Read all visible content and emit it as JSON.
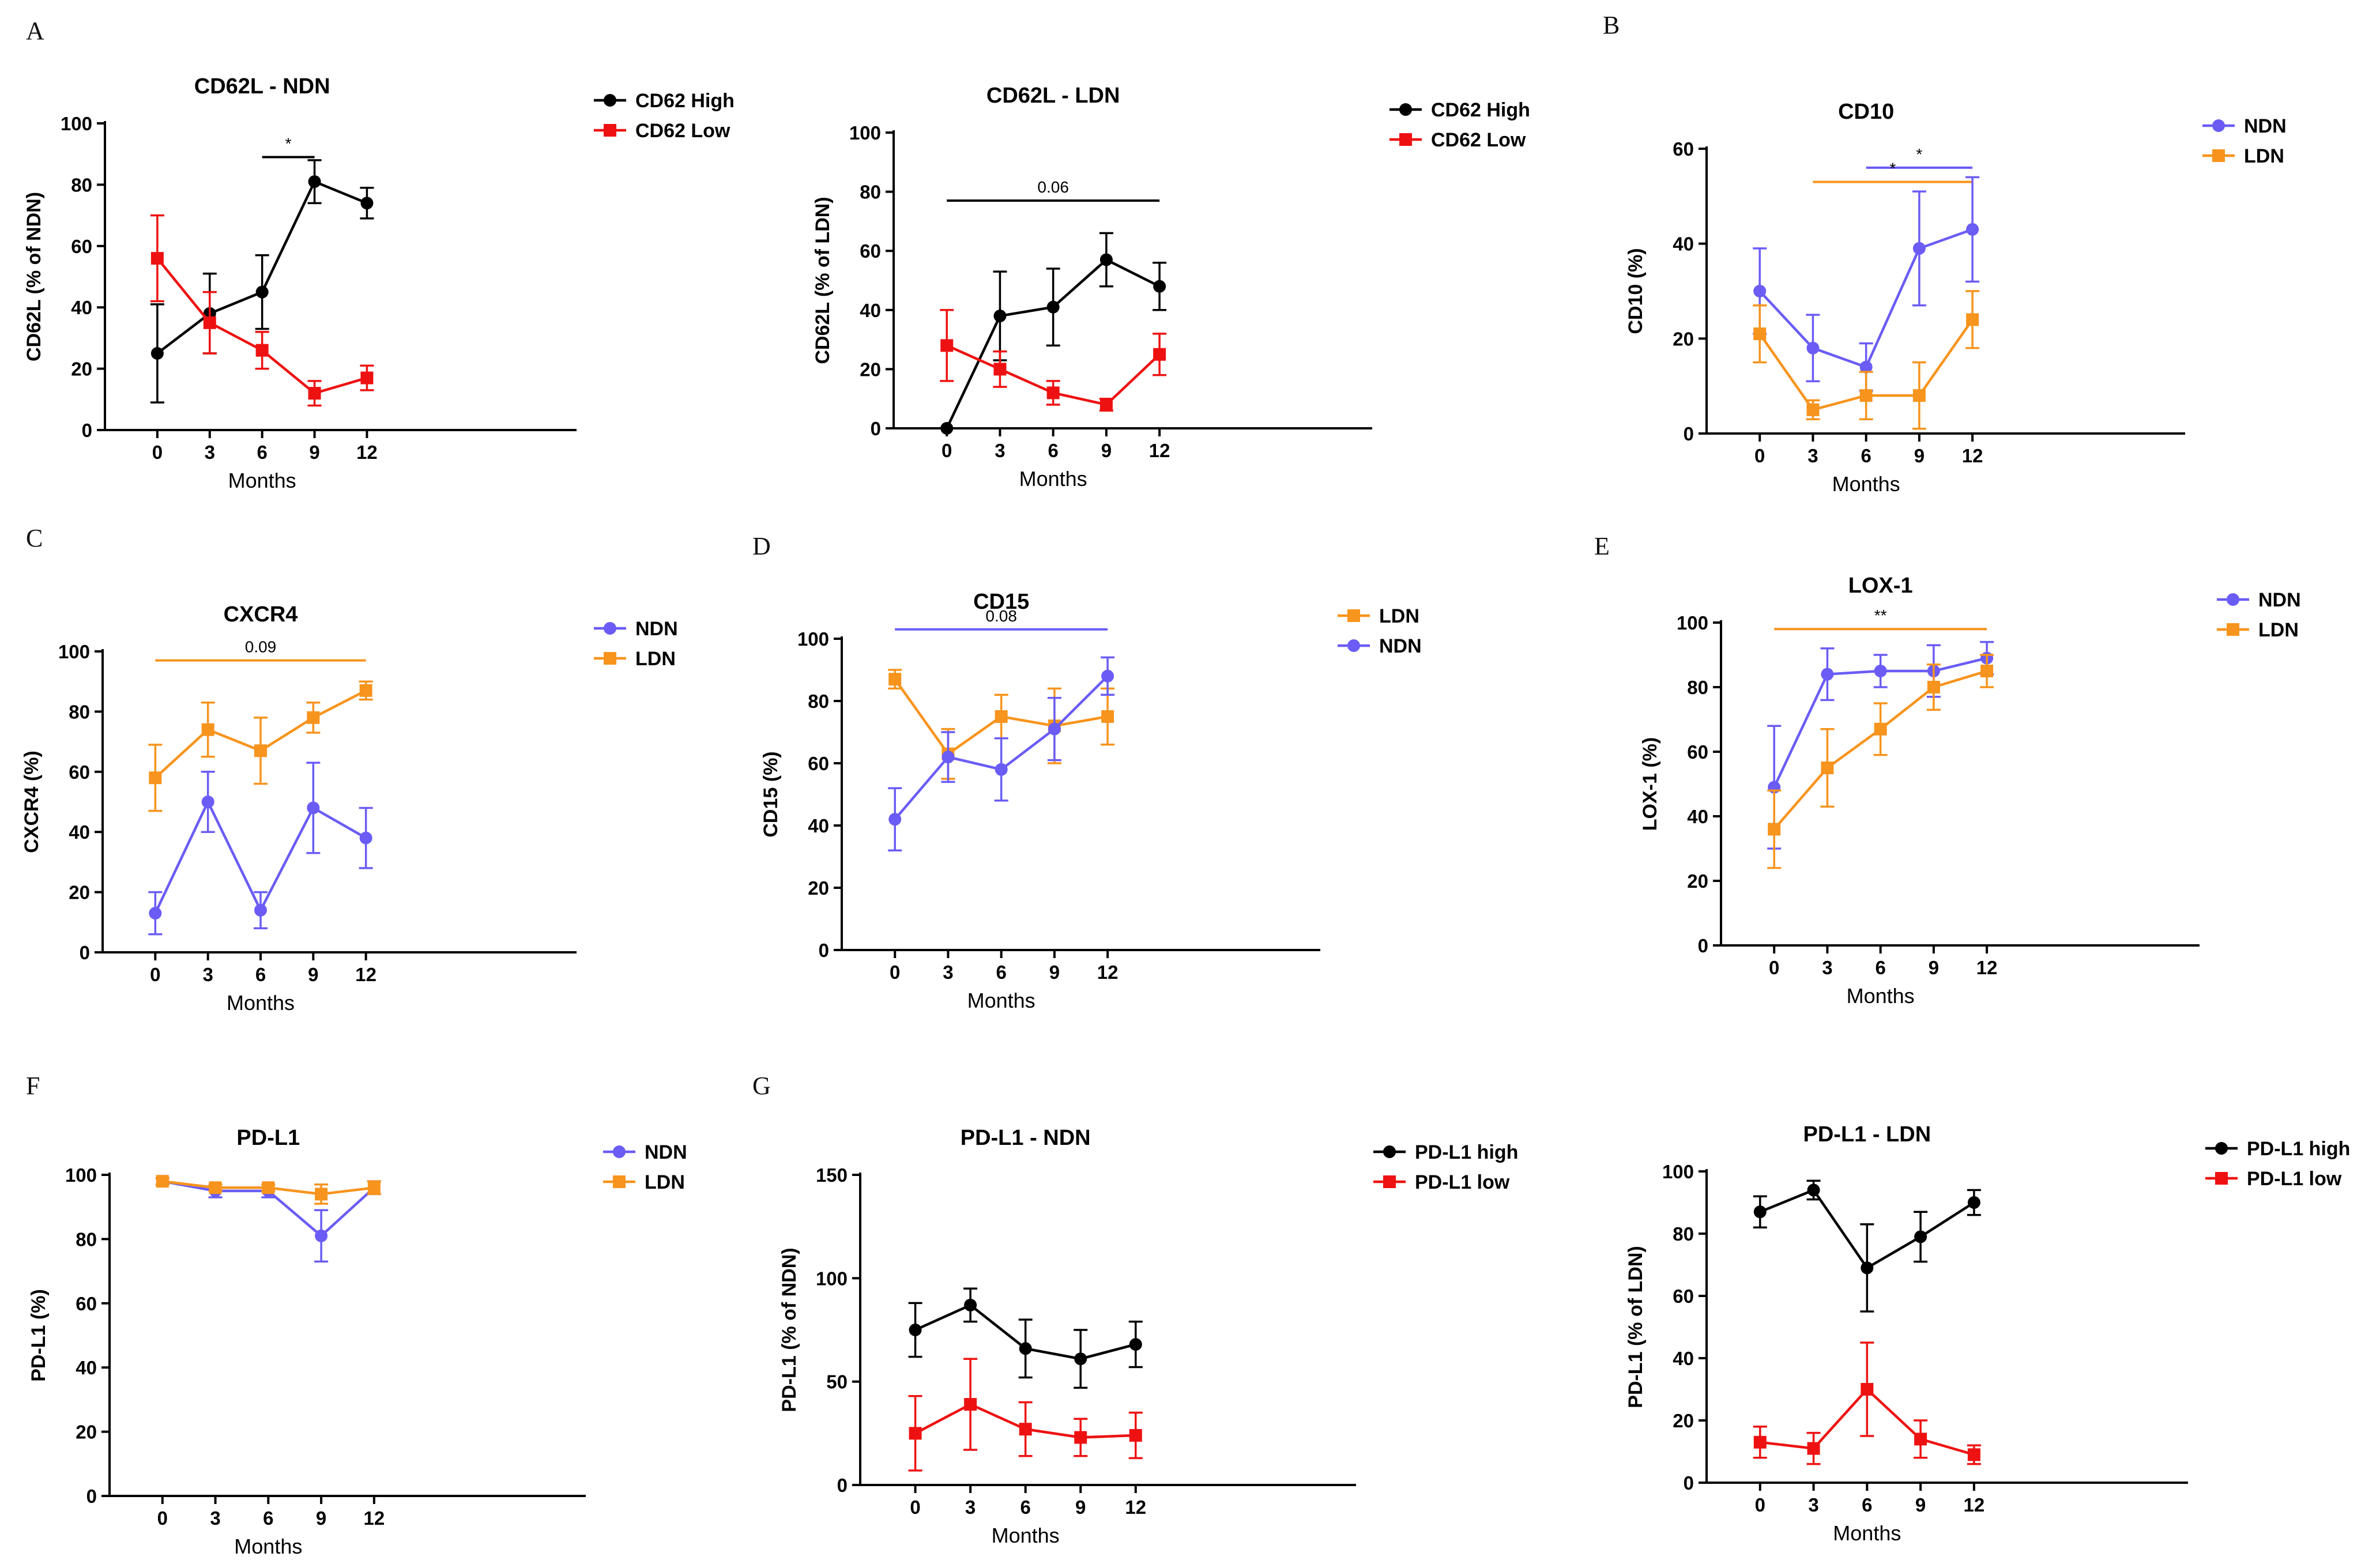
{
  "colors": {
    "black": "#000000",
    "red": "#ee1111",
    "blue": "#6a5cf5",
    "orange": "#f7941d"
  },
  "panel_letters": [
    "A",
    "B",
    "C",
    "D",
    "E",
    "F",
    "G"
  ],
  "chart_data": [
    {
      "id": "cd62l_ndn",
      "type": "line",
      "title": "CD62L - NDN",
      "xlabel": "Months",
      "ylabel": "CD62L (% of NDN)",
      "x": [
        0,
        3,
        6,
        9,
        12
      ],
      "xticks": [
        0,
        3,
        6,
        9,
        12
      ],
      "xlim": [
        -3,
        24
      ],
      "ylim": [
        0,
        100
      ],
      "yticks": [
        0,
        20,
        40,
        60,
        80,
        100
      ],
      "series": [
        {
          "name": "CD62 High",
          "color": "#000000",
          "marker": "circle",
          "values": [
            25,
            38,
            45,
            81,
            74
          ],
          "err": [
            16,
            13,
            12,
            7,
            5
          ]
        },
        {
          "name": "CD62 Low",
          "color": "#ee1111",
          "marker": "square",
          "values": [
            56,
            35,
            26,
            12,
            17
          ],
          "err": [
            14,
            10,
            6,
            4,
            4
          ]
        }
      ],
      "annotations": [
        {
          "x1": 6,
          "x2": 9,
          "y": 89,
          "label": "*",
          "color": "#000000"
        }
      ]
    },
    {
      "id": "cd62l_ldn",
      "type": "line",
      "title": "CD62L - LDN",
      "xlabel": "Months",
      "ylabel": "CD62L (% of LDN)",
      "x": [
        0,
        3,
        6,
        9,
        12
      ],
      "xticks": [
        0,
        3,
        6,
        9,
        12
      ],
      "xlim": [
        -3,
        24
      ],
      "ylim": [
        0,
        100
      ],
      "yticks": [
        0,
        20,
        40,
        60,
        80,
        100
      ],
      "series": [
        {
          "name": "CD62 High",
          "color": "#000000",
          "marker": "circle",
          "values": [
            0,
            38,
            41,
            57,
            48
          ],
          "err": [
            0,
            15,
            13,
            9,
            8
          ]
        },
        {
          "name": "CD62 Low",
          "color": "#ee1111",
          "marker": "square",
          "values": [
            28,
            20,
            12,
            8,
            25
          ],
          "err": [
            12,
            6,
            4,
            2,
            7
          ]
        }
      ],
      "annotations": [
        {
          "x1": 0,
          "x2": 12,
          "y": 77,
          "label": "0.06",
          "color": "#000000"
        }
      ]
    },
    {
      "id": "cd10",
      "type": "line",
      "title": "CD10",
      "xlabel": "Months",
      "ylabel": "CD10 (%)",
      "x": [
        0,
        3,
        6,
        9,
        12
      ],
      "xticks": [
        0,
        3,
        6,
        9,
        12
      ],
      "xlim": [
        -3,
        24
      ],
      "ylim": [
        0,
        60
      ],
      "yticks": [
        0,
        20,
        40,
        60
      ],
      "series": [
        {
          "name": "NDN",
          "color": "#6a5cf5",
          "marker": "circle",
          "values": [
            30,
            18,
            14,
            39,
            43
          ],
          "err": [
            9,
            7,
            5,
            12,
            11
          ]
        },
        {
          "name": "LDN",
          "color": "#f7941d",
          "marker": "square",
          "values": [
            21,
            5,
            8,
            8,
            24
          ],
          "err": [
            6,
            2,
            5,
            7,
            6
          ]
        }
      ],
      "annotations": [
        {
          "x1": 6,
          "x2": 12,
          "y": 56,
          "label": "*",
          "color": "#6a5cf5"
        },
        {
          "x1": 3,
          "x2": 12,
          "y": 53,
          "label": "*",
          "color": "#f7941d"
        }
      ]
    },
    {
      "id": "cxcr4",
      "type": "line",
      "title": "CXCR4",
      "xlabel": "Months",
      "ylabel": "CXCR4 (%)",
      "x": [
        0,
        3,
        6,
        9,
        12
      ],
      "xticks": [
        0,
        3,
        6,
        9,
        12
      ],
      "xlim": [
        -3,
        24
      ],
      "ylim": [
        0,
        100
      ],
      "yticks": [
        0,
        20,
        40,
        60,
        80,
        100
      ],
      "series": [
        {
          "name": "NDN",
          "color": "#6a5cf5",
          "marker": "circle",
          "values": [
            13,
            50,
            14,
            48,
            38
          ],
          "err": [
            7,
            10,
            6,
            15,
            10
          ]
        },
        {
          "name": "LDN",
          "color": "#f7941d",
          "marker": "square",
          "values": [
            58,
            74,
            67,
            78,
            87
          ],
          "err": [
            11,
            9,
            11,
            5,
            3
          ]
        }
      ],
      "annotations": [
        {
          "x1": 0,
          "x2": 12,
          "y": 97,
          "label": "0.09",
          "color": "#f7941d"
        }
      ]
    },
    {
      "id": "cd15",
      "type": "line",
      "title": "CD15",
      "xlabel": "Months",
      "ylabel": "CD15 (%)",
      "x": [
        0,
        3,
        6,
        9,
        12
      ],
      "xticks": [
        0,
        3,
        6,
        9,
        12
      ],
      "xlim": [
        -3,
        24
      ],
      "ylim": [
        0,
        100
      ],
      "yticks": [
        0,
        20,
        40,
        60,
        80,
        100
      ],
      "series": [
        {
          "name": "LDN",
          "color": "#f7941d",
          "marker": "square",
          "values": [
            87,
            63,
            75,
            72,
            75
          ],
          "err": [
            3,
            8,
            7,
            12,
            9
          ]
        },
        {
          "name": "NDN",
          "color": "#6a5cf5",
          "marker": "circle",
          "values": [
            42,
            62,
            58,
            71,
            88
          ],
          "err": [
            10,
            8,
            10,
            10,
            6
          ]
        }
      ],
      "annotations": [
        {
          "x1": 0,
          "x2": 12,
          "y": 103,
          "label": "0.08",
          "color": "#6a5cf5"
        }
      ]
    },
    {
      "id": "lox1",
      "type": "line",
      "title": "LOX-1",
      "xlabel": "Months",
      "ylabel": "LOX-1 (%)",
      "x": [
        0,
        3,
        6,
        9,
        12
      ],
      "xticks": [
        0,
        3,
        6,
        9,
        12
      ],
      "xlim": [
        -3,
        24
      ],
      "ylim": [
        0,
        100
      ],
      "yticks": [
        0,
        20,
        40,
        60,
        80,
        100
      ],
      "series": [
        {
          "name": "NDN",
          "color": "#6a5cf5",
          "marker": "circle",
          "values": [
            49,
            84,
            85,
            85,
            89
          ],
          "err": [
            19,
            8,
            5,
            8,
            5
          ]
        },
        {
          "name": "LDN",
          "color": "#f7941d",
          "marker": "square",
          "values": [
            36,
            55,
            67,
            80,
            85
          ],
          "err": [
            12,
            12,
            8,
            7,
            5
          ]
        }
      ],
      "annotations": [
        {
          "x1": 0,
          "x2": 12,
          "y": 98,
          "label": "**",
          "color": "#f7941d"
        }
      ]
    },
    {
      "id": "pdl1",
      "type": "line",
      "title": "PD-L1",
      "xlabel": "Months",
      "ylabel": "PD-L1 (%)",
      "x": [
        0,
        3,
        6,
        9,
        12
      ],
      "xticks": [
        0,
        3,
        6,
        9,
        12
      ],
      "xlim": [
        -3,
        24
      ],
      "ylim": [
        0,
        100
      ],
      "yticks": [
        0,
        20,
        40,
        60,
        80,
        100
      ],
      "series": [
        {
          "name": "NDN",
          "color": "#6a5cf5",
          "marker": "circle",
          "values": [
            98,
            95,
            95,
            81,
            96
          ],
          "err": [
            1,
            2,
            2,
            8,
            2
          ]
        },
        {
          "name": "LDN",
          "color": "#f7941d",
          "marker": "square",
          "values": [
            98,
            96,
            96,
            94,
            96
          ],
          "err": [
            1,
            1,
            1,
            3,
            2
          ]
        }
      ],
      "annotations": []
    },
    {
      "id": "pdl1_ndn",
      "type": "line",
      "title": "PD-L1 - NDN",
      "xlabel": "Months",
      "ylabel": "PD-L1 (% of NDN)",
      "x": [
        0,
        3,
        6,
        9,
        12
      ],
      "xticks": [
        0,
        3,
        6,
        9,
        12
      ],
      "xlim": [
        -3,
        24
      ],
      "ylim": [
        0,
        150
      ],
      "yticks": [
        0,
        50,
        100,
        150
      ],
      "series": [
        {
          "name": "PD-L1 high",
          "color": "#000000",
          "marker": "circle",
          "values": [
            75,
            87,
            66,
            61,
            68
          ],
          "err": [
            13,
            8,
            14,
            14,
            11
          ]
        },
        {
          "name": "PD-L1 low",
          "color": "#ee1111",
          "marker": "square",
          "values": [
            25,
            39,
            27,
            23,
            24
          ],
          "err": [
            18,
            22,
            13,
            9,
            11
          ]
        }
      ],
      "annotations": []
    },
    {
      "id": "pdl1_ldn",
      "type": "line",
      "title": "PD-L1 - LDN",
      "xlabel": "Months",
      "ylabel": "PD-L1 (% of LDN)",
      "x": [
        0,
        3,
        6,
        9,
        12
      ],
      "xticks": [
        0,
        3,
        6,
        9,
        12
      ],
      "xlim": [
        -3,
        24
      ],
      "ylim": [
        0,
        100
      ],
      "yticks": [
        0,
        20,
        40,
        60,
        80,
        100
      ],
      "series": [
        {
          "name": "PD-L1 high",
          "color": "#000000",
          "marker": "circle",
          "values": [
            87,
            94,
            69,
            79,
            90
          ],
          "err": [
            5,
            3,
            14,
            8,
            4
          ]
        },
        {
          "name": "PD-L1 low",
          "color": "#ee1111",
          "marker": "square",
          "values": [
            13,
            11,
            30,
            14,
            9
          ],
          "err": [
            5,
            5,
            15,
            6,
            3
          ]
        }
      ],
      "annotations": []
    }
  ]
}
